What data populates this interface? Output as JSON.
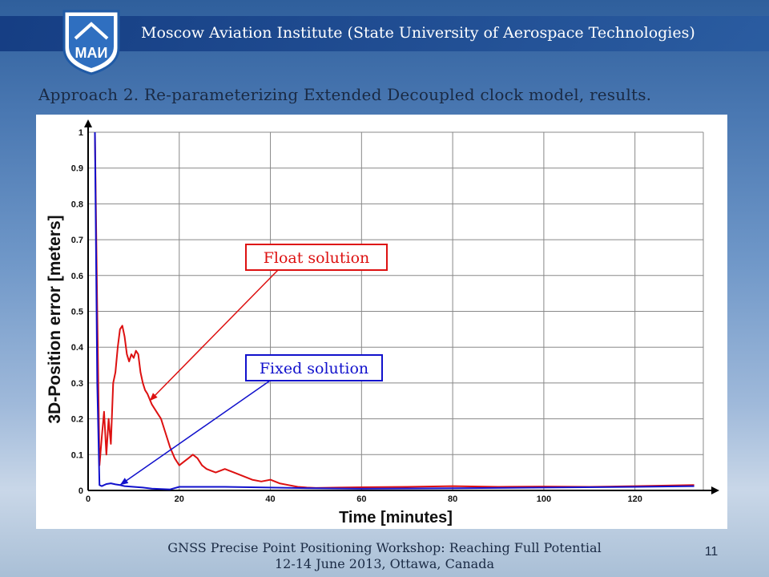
{
  "header": {
    "institute": "Moscow Aviation Institute (State University of Aerospace Technologies)",
    "logo_text": "МАИ"
  },
  "slide": {
    "title": "Approach 2. Re-parameterizing Extended Decoupled clock model, results.",
    "footer_line1": "GNSS Precise Point Positioning Workshop: Reaching Full Potential",
    "footer_line2": "12-14 June 2013, Ottawa, Canada",
    "page_number": "11"
  },
  "colors": {
    "float": "#dd1111",
    "fixed": "#1111cc",
    "grid": "#888888"
  },
  "chart_data": {
    "type": "line",
    "xlabel": "Time [minutes]",
    "ylabel": "3D-Position error [meters]",
    "xlim": [
      0,
      135
    ],
    "ylim": [
      0,
      1
    ],
    "xticks": [
      "0",
      "20",
      "40",
      "60",
      "80",
      "100",
      "120"
    ],
    "yticks": [
      "0",
      "0.1",
      "0.2",
      "0.3",
      "0.4",
      "0.5",
      "0.6",
      "0.7",
      "0.8",
      "0.9",
      "1"
    ],
    "grid": true,
    "annotations": [
      {
        "text": "Float solution",
        "color": "#dd1111",
        "points_to": [
          13.5,
          0.25
        ]
      },
      {
        "text": "Fixed solution",
        "color": "#1111cc",
        "points_to": [
          7,
          0.015
        ]
      }
    ],
    "series": [
      {
        "key": "float",
        "x": [
          1.5,
          2,
          2.5,
          3,
          3.5,
          4,
          4.5,
          5,
          5.5,
          6,
          6.5,
          7,
          7.5,
          8,
          8.5,
          9,
          9.5,
          10,
          10.5,
          11,
          11.5,
          12,
          12.5,
          13,
          14,
          15,
          16,
          17,
          18,
          19,
          20,
          21,
          22,
          23,
          24,
          25,
          26,
          27,
          28,
          30,
          32,
          34,
          36,
          38,
          40,
          42,
          44,
          46,
          48,
          50,
          55,
          60,
          70,
          80,
          90,
          100,
          110,
          120,
          133
        ],
        "y": [
          1.0,
          0.5,
          0.07,
          0.15,
          0.22,
          0.1,
          0.2,
          0.13,
          0.3,
          0.33,
          0.4,
          0.45,
          0.46,
          0.43,
          0.38,
          0.36,
          0.38,
          0.37,
          0.39,
          0.38,
          0.33,
          0.3,
          0.28,
          0.27,
          0.24,
          0.22,
          0.2,
          0.16,
          0.12,
          0.09,
          0.07,
          0.08,
          0.09,
          0.1,
          0.09,
          0.07,
          0.06,
          0.055,
          0.05,
          0.06,
          0.05,
          0.04,
          0.03,
          0.025,
          0.03,
          0.02,
          0.015,
          0.01,
          0.008,
          0.007,
          0.008,
          0.009,
          0.01,
          0.012,
          0.01,
          0.011,
          0.01,
          0.012,
          0.015
        ]
      },
      {
        "key": "fixed",
        "x": [
          1.5,
          2,
          2.5,
          3,
          4,
          5,
          6,
          7,
          8,
          10,
          12,
          14,
          16,
          18,
          20,
          25,
          30,
          40,
          50,
          60,
          80,
          100,
          120,
          133
        ],
        "y": [
          1.0,
          0.3,
          0.015,
          0.012,
          0.018,
          0.02,
          0.017,
          0.015,
          0.012,
          0.01,
          0.008,
          0.005,
          0.004,
          0.003,
          0.01,
          0.01,
          0.01,
          0.008,
          0.006,
          0.005,
          0.006,
          0.008,
          0.01,
          0.012
        ]
      }
    ]
  }
}
